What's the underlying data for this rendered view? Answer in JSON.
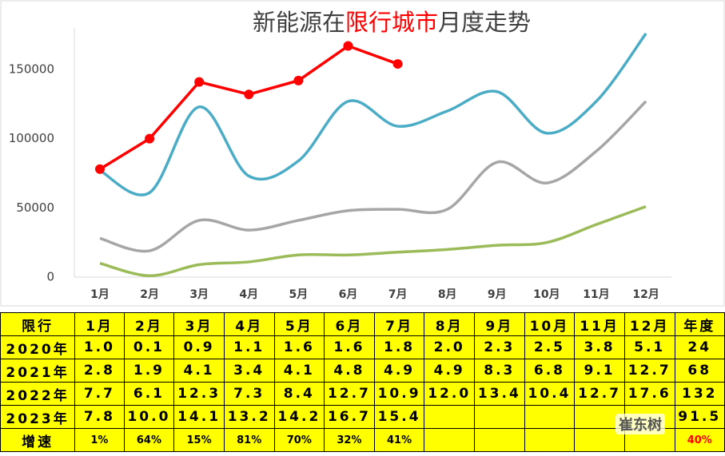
{
  "chart_data": {
    "type": "line",
    "title": [
      "新能源在",
      "限行城市",
      "月度走势"
    ],
    "title_colors": [
      "#404040",
      "#ff0000",
      "#404040"
    ],
    "categories": [
      "1月",
      "2月",
      "3月",
      "4月",
      "5月",
      "6月",
      "7月",
      "8月",
      "9月",
      "10月",
      "11月",
      "12月"
    ],
    "series": [
      {
        "color": "#9bbb59",
        "smooth": true,
        "markers": false,
        "values": [
          10000,
          1000,
          9000,
          11000,
          16000,
          16000,
          18000,
          20000,
          23000,
          25000,
          38000,
          51000
        ]
      },
      {
        "color": "#a6a6a6",
        "smooth": true,
        "markers": false,
        "values": [
          28000,
          19000,
          41000,
          34000,
          41000,
          48000,
          49000,
          49000,
          83000,
          68000,
          91000,
          127000
        ]
      },
      {
        "color": "#4bacc6",
        "smooth": true,
        "markers": false,
        "values": [
          77000,
          61000,
          123000,
          73000,
          84000,
          127000,
          109000,
          120000,
          134000,
          104000,
          127000,
          176000
        ]
      },
      {
        "color": "#ff0000",
        "smooth": false,
        "markers": true,
        "values": [
          78000,
          100000,
          141000,
          132000,
          142000,
          167000,
          154000,
          null,
          null,
          null,
          null,
          null
        ]
      }
    ],
    "ylim": [
      0,
      180000
    ],
    "yticks": [
      0,
      50000,
      100000,
      150000
    ],
    "grid": false
  },
  "table": {
    "rows": [
      [
        "限行",
        "1月",
        "2月",
        "3月",
        "4月",
        "5月",
        "6月",
        "7月",
        "8月",
        "9月",
        "10月",
        "11月",
        "12月",
        "年度"
      ],
      [
        "2020年",
        "1.0",
        "0.1",
        "0.9",
        "1.1",
        "1.6",
        "1.6",
        "1.8",
        "2.0",
        "2.3",
        "2.5",
        "3.8",
        "5.1",
        "24"
      ],
      [
        "2021年",
        "2.8",
        "1.9",
        "4.1",
        "3.4",
        "4.1",
        "4.8",
        "4.9",
        "4.9",
        "8.3",
        "6.8",
        "9.1",
        "12.7",
        "68"
      ],
      [
        "2022年",
        "7.7",
        "6.1",
        "12.3",
        "7.3",
        "8.4",
        "12.7",
        "10.9",
        "12.0",
        "13.4",
        "10.4",
        "12.7",
        "17.6",
        "132"
      ],
      [
        "2023年",
        "7.8",
        "10.0",
        "14.1",
        "13.2",
        "14.2",
        "16.7",
        "15.4",
        null,
        null,
        null,
        null,
        null,
        "91.5"
      ],
      [
        "增速",
        "1%",
        "64%",
        "15%",
        "81%",
        "70%",
        "32%",
        "41%",
        null,
        null,
        null,
        null,
        null,
        "40%"
      ]
    ],
    "red_cells": [
      [
        5,
        13
      ]
    ]
  },
  "watermark": "崔东树"
}
